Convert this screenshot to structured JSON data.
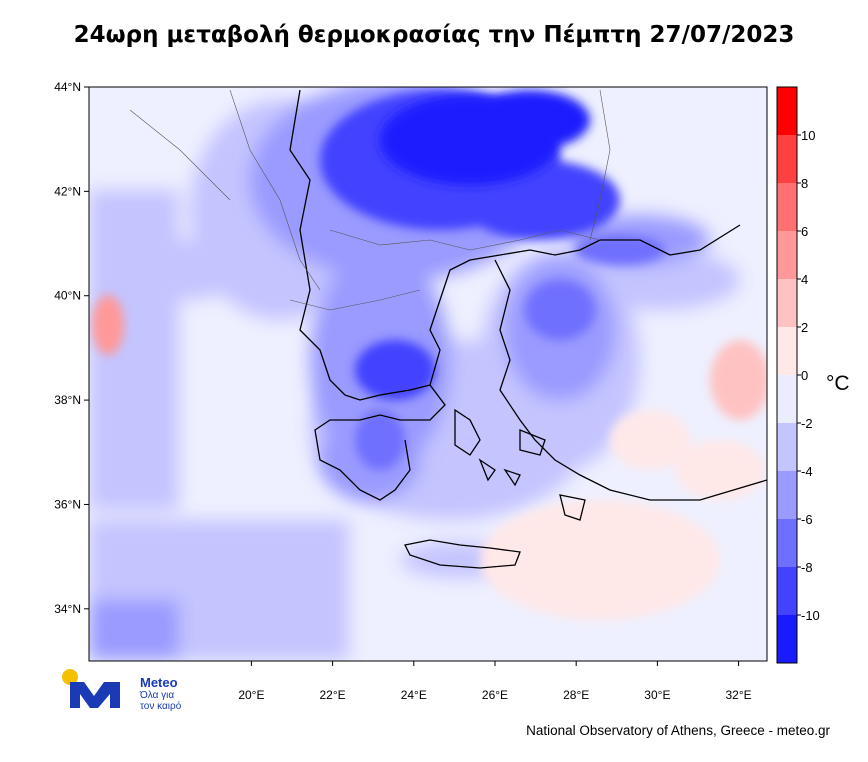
{
  "title": "24ωρη μεταβολή θερμοκρασίας την Πέμπτη 27/07/2023",
  "map": {
    "lat_ticks": [
      "44°N",
      "42°N",
      "40°N",
      "38°N",
      "36°N",
      "34°N"
    ],
    "lon_ticks": [
      "20°E",
      "22°E",
      "24°E",
      "26°E",
      "28°E",
      "30°E",
      "32°E"
    ],
    "extent": {
      "lon_min": 16.0,
      "lon_max": 32.7,
      "lat_min": 33.0,
      "lat_max": 44.0
    }
  },
  "colorbar": {
    "labels": [
      "10",
      "8",
      "6",
      "4",
      "2",
      "0",
      "-2",
      "-4",
      "-6",
      "-8",
      "-10"
    ],
    "unit": "°C",
    "colors": [
      "#ff0000",
      "#ff4040",
      "#ff7070",
      "#ff9999",
      "#ffc2c2",
      "#ffe8e8",
      "#ececff",
      "#c4c4ff",
      "#9a9aff",
      "#6f6fff",
      "#4343ff",
      "#1a1aff"
    ]
  },
  "logo": {
    "name": "Meteo",
    "slogan_line1": "Όλα για",
    "slogan_line2": "τον καιρό"
  },
  "credit": "National Observatory of Athens, Greece - meteo.gr"
}
